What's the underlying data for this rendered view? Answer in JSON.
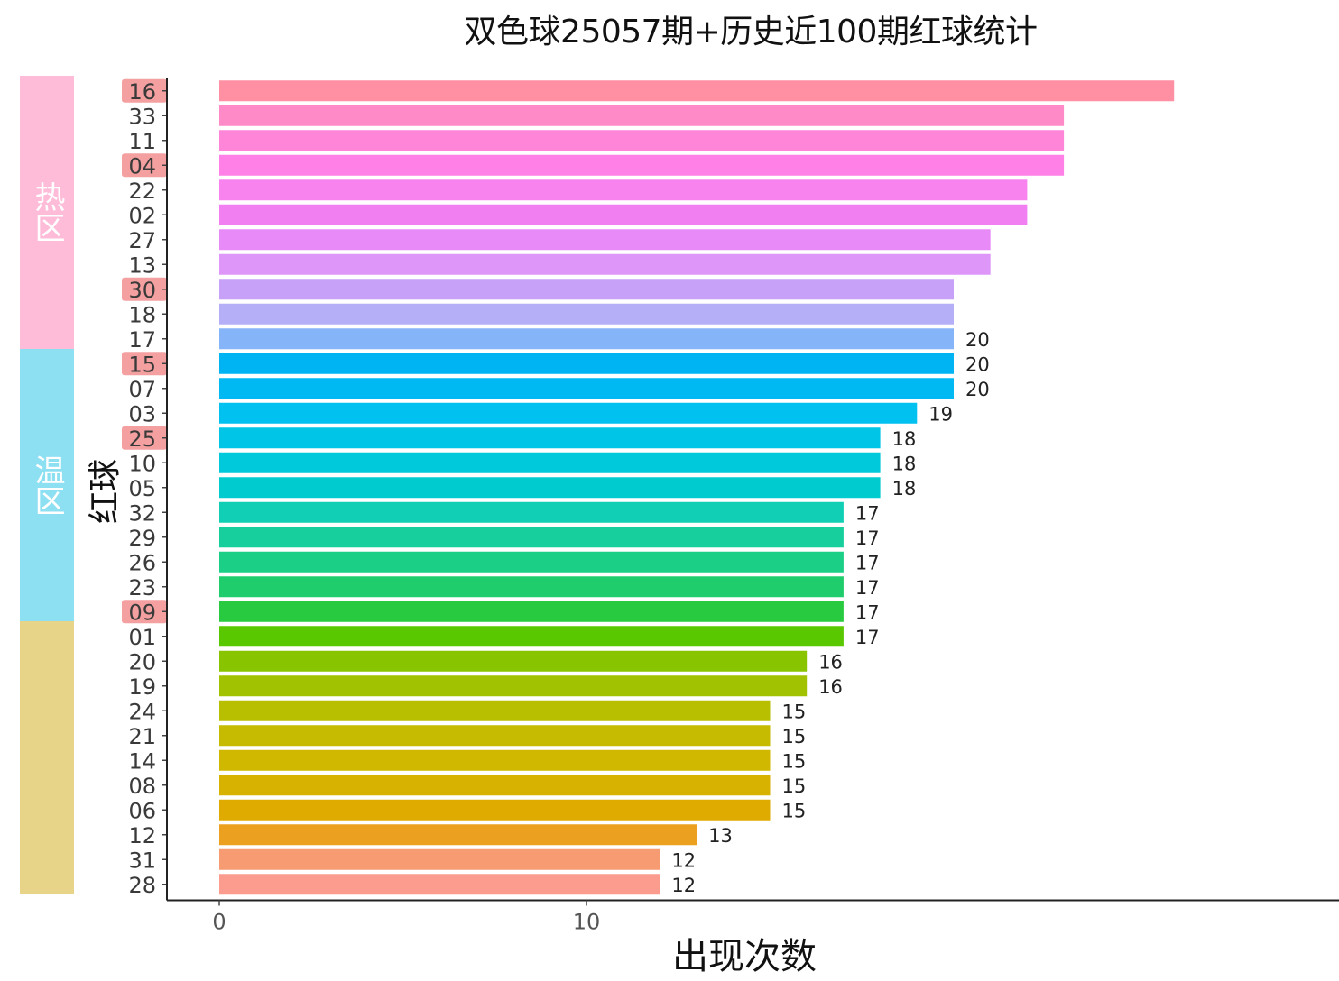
{
  "chart_data": {
    "type": "bar",
    "orientation": "horizontal",
    "title": "双色球25057期+历史近100期红球统计",
    "xlabel": "出现次数",
    "ylabel": "红球",
    "xlim": [
      0,
      30
    ],
    "x_ticks": [
      "0",
      "10"
    ],
    "grid": false,
    "legend": "none",
    "categories": [
      "16",
      "33",
      "11",
      "04",
      "22",
      "02",
      "27",
      "13",
      "30",
      "18",
      "17",
      "15",
      "07",
      "03",
      "25",
      "10",
      "05",
      "32",
      "29",
      "26",
      "23",
      "09",
      "01",
      "20",
      "19",
      "24",
      "21",
      "14",
      "08",
      "06",
      "12",
      "31",
      "28"
    ],
    "values": [
      26,
      23,
      23,
      23,
      22,
      22,
      21,
      21,
      20,
      20,
      20,
      20,
      20,
      19,
      18,
      18,
      18,
      17,
      17,
      17,
      17,
      17,
      17,
      16,
      16,
      15,
      15,
      15,
      15,
      15,
      13,
      12,
      12
    ],
    "value_labels": [
      "",
      "",
      "",
      "",
      "",
      "",
      "",
      "",
      "",
      "",
      "20",
      "20",
      "20",
      "19",
      "18",
      "18",
      "18",
      "17",
      "17",
      "17",
      "17",
      "17",
      "17",
      "16",
      "16",
      "15",
      "15",
      "15",
      "15",
      "15",
      "13",
      "12",
      "12"
    ],
    "highlighted": [
      "16",
      "04",
      "30",
      "15",
      "25",
      "09"
    ],
    "colors": [
      "#ff8fa3",
      "#ff8ac8",
      "#ff85d8",
      "#ff80e6",
      "#f883ef",
      "#f27ff2",
      "#e88af8",
      "#de96f8",
      "#c7a0f7",
      "#b4aff6",
      "#85b4f9",
      "#00b4f3",
      "#00b8f2",
      "#00c1ef",
      "#00c5e6",
      "#00c9dc",
      "#00ccd0",
      "#11cfb4",
      "#16cf9c",
      "#1bcf86",
      "#20cd6c",
      "#28cb3f",
      "#5ac800",
      "#88c400",
      "#a0c200",
      "#b8be00",
      "#c6bb00",
      "#d0b700",
      "#d8b200",
      "#e0ab00",
      "#eca020",
      "#f69b72",
      "#fb9c8f"
    ],
    "zones": [
      {
        "label": "热区",
        "color": "#ffbcd9",
        "rows": 11
      },
      {
        "label": "温区",
        "color": "#8ddff2",
        "rows": 11
      },
      {
        "label": "",
        "color": "#e8d488",
        "rows": 11
      }
    ],
    "highlight_color": "#f08080"
  }
}
